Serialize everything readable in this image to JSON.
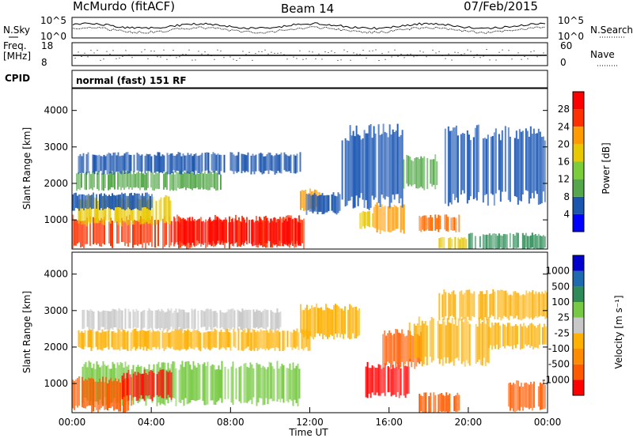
{
  "header": {
    "station": "McMurdo (fitACF)",
    "beam": "Beam 14",
    "date": "07/Feb/2015"
  },
  "top_panel": {
    "left_label": "N.Sky",
    "right_label": "N.Search",
    "left_ticks": [
      "10^5",
      "10^0"
    ],
    "right_ticks": [
      "10^5",
      "10^0"
    ]
  },
  "freq_panel": {
    "left_label_line1": "Freq.",
    "left_label_line2": "[MHz]",
    "right_label": "Nave",
    "left_ticks": [
      "18",
      "8"
    ],
    "right_ticks": [
      "60",
      "0"
    ]
  },
  "cpid": {
    "label": "CPID",
    "value": "normal (fast) 151 RF"
  },
  "colors": {
    "power_scale": [
      "#0000ff",
      "#1a55b0",
      "#2e8b57",
      "#55a84a",
      "#7ccd3c",
      "#e8c800",
      "#ff9a00",
      "#ff6a00",
      "#ff3000",
      "#ff0000"
    ],
    "velocity_scale": [
      "#ff0000",
      "#ff5a00",
      "#ff8c00",
      "#ffb000",
      "#c8c8c8",
      "#c8c8c8",
      "#77c943",
      "#2e8b57",
      "#1e6ab0",
      "#0000cc"
    ]
  },
  "chart_data": [
    {
      "type": "heatmap",
      "name": "power",
      "xlabel": "",
      "ylabel": "Slant Range [km]",
      "y_ticks": [
        "1000",
        "2000",
        "3000",
        "4000"
      ],
      "ylim": [
        200,
        4600
      ],
      "xlim": [
        0,
        24
      ],
      "colorbar_label": "Power [dB]",
      "colorbar_ticks": [
        "4",
        "8",
        "12",
        "16",
        "20",
        "24",
        "28"
      ],
      "regions": [
        {
          "t0": 0.0,
          "t1": 11.7,
          "r0": 300,
          "r1": 1050,
          "level": 9
        },
        {
          "t0": 0.3,
          "t1": 5.0,
          "r0": 900,
          "r1": 1600,
          "level": 6
        },
        {
          "t0": 5.0,
          "t1": 11.5,
          "r0": 350,
          "r1": 1000,
          "level": 10
        },
        {
          "t0": 0.0,
          "t1": 4.0,
          "r0": 1300,
          "r1": 1700,
          "level": 2
        },
        {
          "t0": 0.2,
          "t1": 7.5,
          "r0": 1850,
          "r1": 2300,
          "level": 4
        },
        {
          "t0": 0.3,
          "t1": 11.5,
          "r0": 2300,
          "r1": 2800,
          "level": 2
        },
        {
          "t0": 11.5,
          "t1": 12.5,
          "r0": 1300,
          "r1": 1800,
          "level": 7
        },
        {
          "t0": 11.8,
          "t1": 13.5,
          "r0": 1200,
          "r1": 1700,
          "level": 2
        },
        {
          "t0": 13.6,
          "t1": 16.7,
          "r0": 1500,
          "r1": 3400,
          "level": 2
        },
        {
          "t0": 14.5,
          "t1": 15.2,
          "r0": 800,
          "r1": 1200,
          "level": 6
        },
        {
          "t0": 15.2,
          "t1": 16.8,
          "r0": 700,
          "r1": 1400,
          "level": 7
        },
        {
          "t0": 17.5,
          "t1": 19.5,
          "r0": 700,
          "r1": 1100,
          "level": 8
        },
        {
          "t0": 16.7,
          "t1": 18.5,
          "r0": 1900,
          "r1": 2700,
          "level": 4
        },
        {
          "t0": 18.8,
          "t1": 23.9,
          "r0": 1600,
          "r1": 3400,
          "level": 2
        },
        {
          "t0": 18.5,
          "t1": 20.0,
          "r0": 200,
          "r1": 500,
          "level": 6
        },
        {
          "t0": 20.0,
          "t1": 23.9,
          "r0": 200,
          "r1": 600,
          "level": 3
        }
      ]
    },
    {
      "type": "heatmap",
      "name": "velocity",
      "xlabel": "Time UT",
      "ylabel": "Slant Range [km]",
      "x_ticks": [
        "00:00",
        "04:00",
        "08:00",
        "12:00",
        "16:00",
        "20:00",
        "00:00"
      ],
      "y_ticks": [
        "1000",
        "2000",
        "3000",
        "4000"
      ],
      "ylim": [
        200,
        4600
      ],
      "xlim": [
        0,
        24
      ],
      "colorbar_label": "Velocity [m s⁻¹]",
      "colorbar_ticks": [
        "1000",
        "500",
        "100",
        "25",
        "-25",
        "-100",
        "-500",
        "-1000"
      ],
      "regions": [
        {
          "t0": 0.5,
          "t1": 11.5,
          "r0": 500,
          "r1": 1500,
          "level": 7
        },
        {
          "t0": 0.0,
          "t1": 3.0,
          "r0": 300,
          "r1": 1100,
          "level": 2
        },
        {
          "t0": 2.5,
          "t1": 5.0,
          "r0": 600,
          "r1": 1300,
          "level": 1
        },
        {
          "t0": 0.3,
          "t1": 12.0,
          "r0": 1950,
          "r1": 2450,
          "level": 4
        },
        {
          "t0": 0.5,
          "t1": 10.5,
          "r0": 2500,
          "r1": 3000,
          "level": 6
        },
        {
          "t0": 11.5,
          "t1": 14.5,
          "r0": 2300,
          "r1": 3100,
          "level": 4
        },
        {
          "t0": 14.8,
          "t1": 17.0,
          "r0": 700,
          "r1": 1500,
          "level": 1
        },
        {
          "t0": 15.5,
          "t1": 17.6,
          "r0": 1500,
          "r1": 2400,
          "level": 2
        },
        {
          "t0": 17.0,
          "t1": 21.0,
          "r0": 1600,
          "r1": 2700,
          "level": 4
        },
        {
          "t0": 18.5,
          "t1": 24.0,
          "r0": 2800,
          "r1": 3500,
          "level": 4
        },
        {
          "t0": 21.0,
          "t1": 23.9,
          "r0": 2000,
          "r1": 2600,
          "level": 4
        },
        {
          "t0": 17.5,
          "t1": 19.5,
          "r0": 200,
          "r1": 700,
          "level": 2
        },
        {
          "t0": 22.0,
          "t1": 23.9,
          "r0": 300,
          "r1": 1000,
          "level": 2
        }
      ]
    }
  ]
}
